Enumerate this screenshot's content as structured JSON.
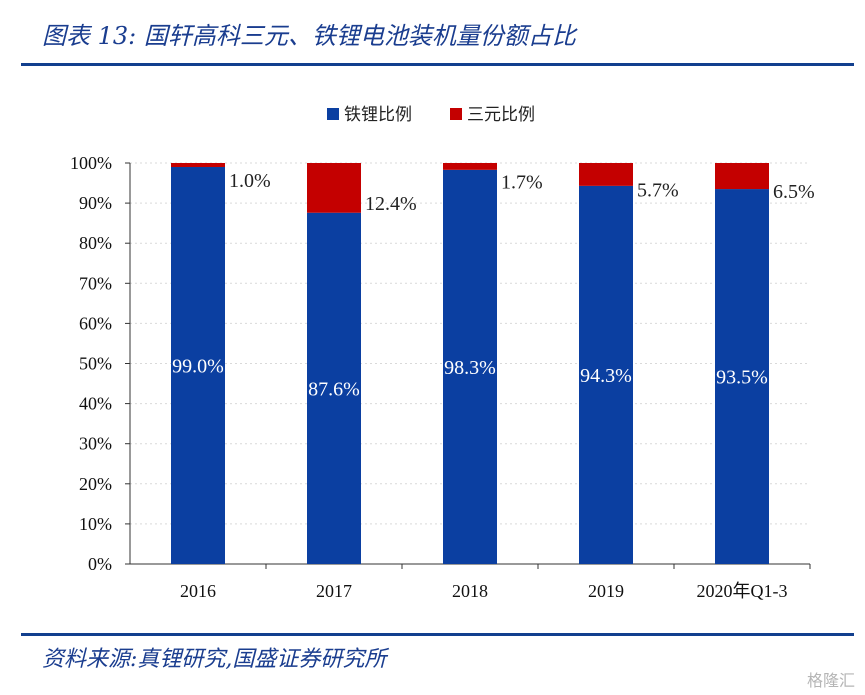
{
  "header": {
    "title": "图表 13: 国轩高科三元、铁锂电池装机量份额占比"
  },
  "footer": {
    "source": "资料来源:真锂研究,国盛证券研究所",
    "watermark": "格隆汇"
  },
  "colors": {
    "lfp": "#0b3fa1",
    "ternary": "#c40000",
    "accent": "#123f8e"
  },
  "chart_data": {
    "type": "bar",
    "stacked": true,
    "categories": [
      "2016",
      "2017",
      "2018",
      "2019",
      "2020年Q1-3"
    ],
    "series": [
      {
        "name": "铁锂比例",
        "values": [
          99.0,
          87.6,
          98.3,
          94.3,
          93.5
        ],
        "labels": [
          "99.0%",
          "87.6%",
          "98.3%",
          "94.3%",
          "93.5%"
        ]
      },
      {
        "name": "三元比例",
        "values": [
          1.0,
          12.4,
          1.7,
          5.7,
          6.5
        ],
        "labels": [
          "1.0%",
          "12.4%",
          "1.7%",
          "5.7%",
          "6.5%"
        ]
      }
    ],
    "ylim": [
      0,
      100
    ],
    "yticks": [
      "0%",
      "10%",
      "20%",
      "30%",
      "40%",
      "50%",
      "60%",
      "70%",
      "80%",
      "90%",
      "100%"
    ],
    "legend": "top",
    "grid": true
  }
}
